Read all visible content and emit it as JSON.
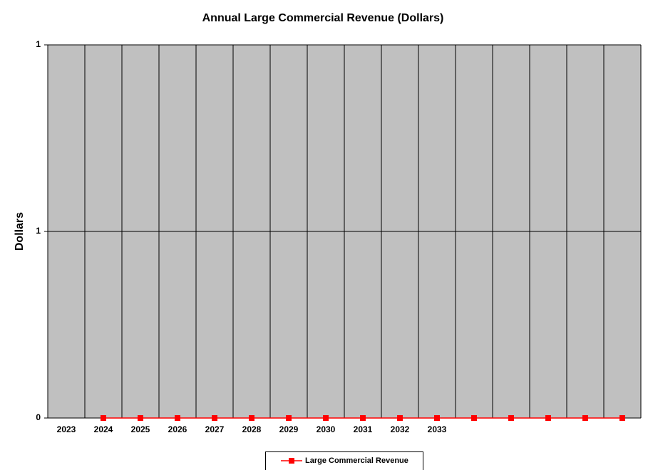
{
  "chart_data": {
    "type": "line",
    "title": "Annual Large Commercial Revenue (Dollars)",
    "y_label": "Dollars",
    "categories": [
      "2023",
      "2024",
      "2025",
      "2026",
      "2027",
      "2028",
      "2029",
      "2030",
      "2031",
      "2032",
      "2033",
      null,
      null,
      null,
      null,
      null
    ],
    "series": [
      {
        "name": "Large Commercial Revenue",
        "color": "#ff0000",
        "values": [
          null,
          0,
          0,
          0,
          0,
          0,
          0,
          0,
          0,
          0,
          0,
          0,
          0,
          0,
          0,
          0
        ]
      }
    ],
    "ylim": [
      0,
      1
    ],
    "yticks": [
      0,
      {
        "value": 0.5,
        "label": "1"
      },
      1
    ],
    "grid": true,
    "legend": "bottom",
    "plot_background": "#c0c0c0"
  }
}
